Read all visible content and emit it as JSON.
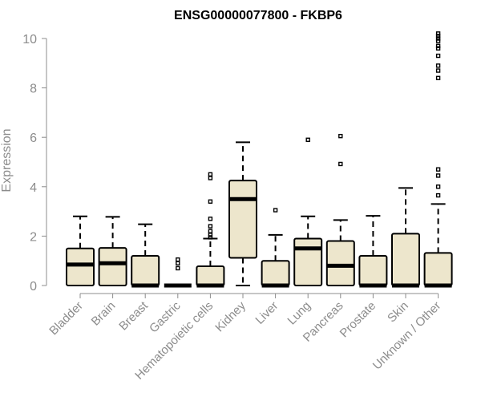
{
  "chart_data": {
    "type": "boxplot",
    "title": "ENSG00000077800 - FKBP6",
    "xlabel": "",
    "ylabel": "Expression",
    "ylim": [
      0,
      10
    ],
    "yticks": [
      0,
      2,
      4,
      6,
      8,
      10
    ],
    "box_color": "#ede6cc",
    "categories": [
      "Bladder",
      "Brain",
      "Breast",
      "Gastric",
      "Hematopoietic cells",
      "Kidney",
      "Liver",
      "Lung",
      "Pancreas",
      "Prostate",
      "Skin",
      "Unknown / Other"
    ],
    "boxes": [
      {
        "name": "Bladder",
        "q1": 0,
        "median": 0.85,
        "q3": 1.5,
        "whisker_low": 0,
        "whisker_high": 2.8,
        "outliers": []
      },
      {
        "name": "Brain",
        "q1": 0,
        "median": 0.9,
        "q3": 1.52,
        "whisker_low": 0,
        "whisker_high": 2.78,
        "outliers": []
      },
      {
        "name": "Breast",
        "q1": 0,
        "median": 0,
        "q3": 1.2,
        "whisker_low": 0,
        "whisker_high": 2.48,
        "outliers": []
      },
      {
        "name": "Gastric",
        "q1": 0,
        "median": 0,
        "q3": 0,
        "whisker_low": 0,
        "whisker_high": 0,
        "outliers": [
          0.7,
          0.9,
          1.05
        ]
      },
      {
        "name": "Hematopoietic cells",
        "q1": 0,
        "median": 0,
        "q3": 0.78,
        "whisker_low": 0,
        "whisker_high": 1.9,
        "outliers": [
          1.95,
          2.05,
          2.2,
          2.4,
          2.7,
          3.4,
          4.35,
          4.5
        ]
      },
      {
        "name": "Kidney",
        "q1": 1.12,
        "median": 3.5,
        "q3": 4.25,
        "whisker_low": 0,
        "whisker_high": 5.8,
        "outliers": []
      },
      {
        "name": "Liver",
        "q1": 0,
        "median": 0,
        "q3": 1.0,
        "whisker_low": 0,
        "whisker_high": 2.05,
        "outliers": [
          3.05
        ]
      },
      {
        "name": "Lung",
        "q1": 0,
        "median": 1.5,
        "q3": 1.9,
        "whisker_low": 0,
        "whisker_high": 2.8,
        "outliers": [
          5.9
        ]
      },
      {
        "name": "Pancreas",
        "q1": 0,
        "median": 0.8,
        "q3": 1.8,
        "whisker_low": 0,
        "whisker_high": 2.65,
        "outliers": [
          4.92,
          6.05
        ]
      },
      {
        "name": "Prostate",
        "q1": 0,
        "median": 0,
        "q3": 1.2,
        "whisker_low": 0,
        "whisker_high": 2.82,
        "outliers": []
      },
      {
        "name": "Skin",
        "q1": 0,
        "median": 0,
        "q3": 2.1,
        "whisker_low": 0,
        "whisker_high": 3.95,
        "outliers": []
      },
      {
        "name": "Unknown / Other",
        "q1": 0,
        "median": 0,
        "q3": 1.32,
        "whisker_low": 0,
        "whisker_high": 3.3,
        "outliers": [
          3.65,
          4.0,
          4.45,
          4.7,
          8.4,
          8.7,
          8.9,
          9.3,
          9.6,
          9.7,
          9.9,
          10.0,
          10.1,
          10.2
        ]
      }
    ]
  }
}
